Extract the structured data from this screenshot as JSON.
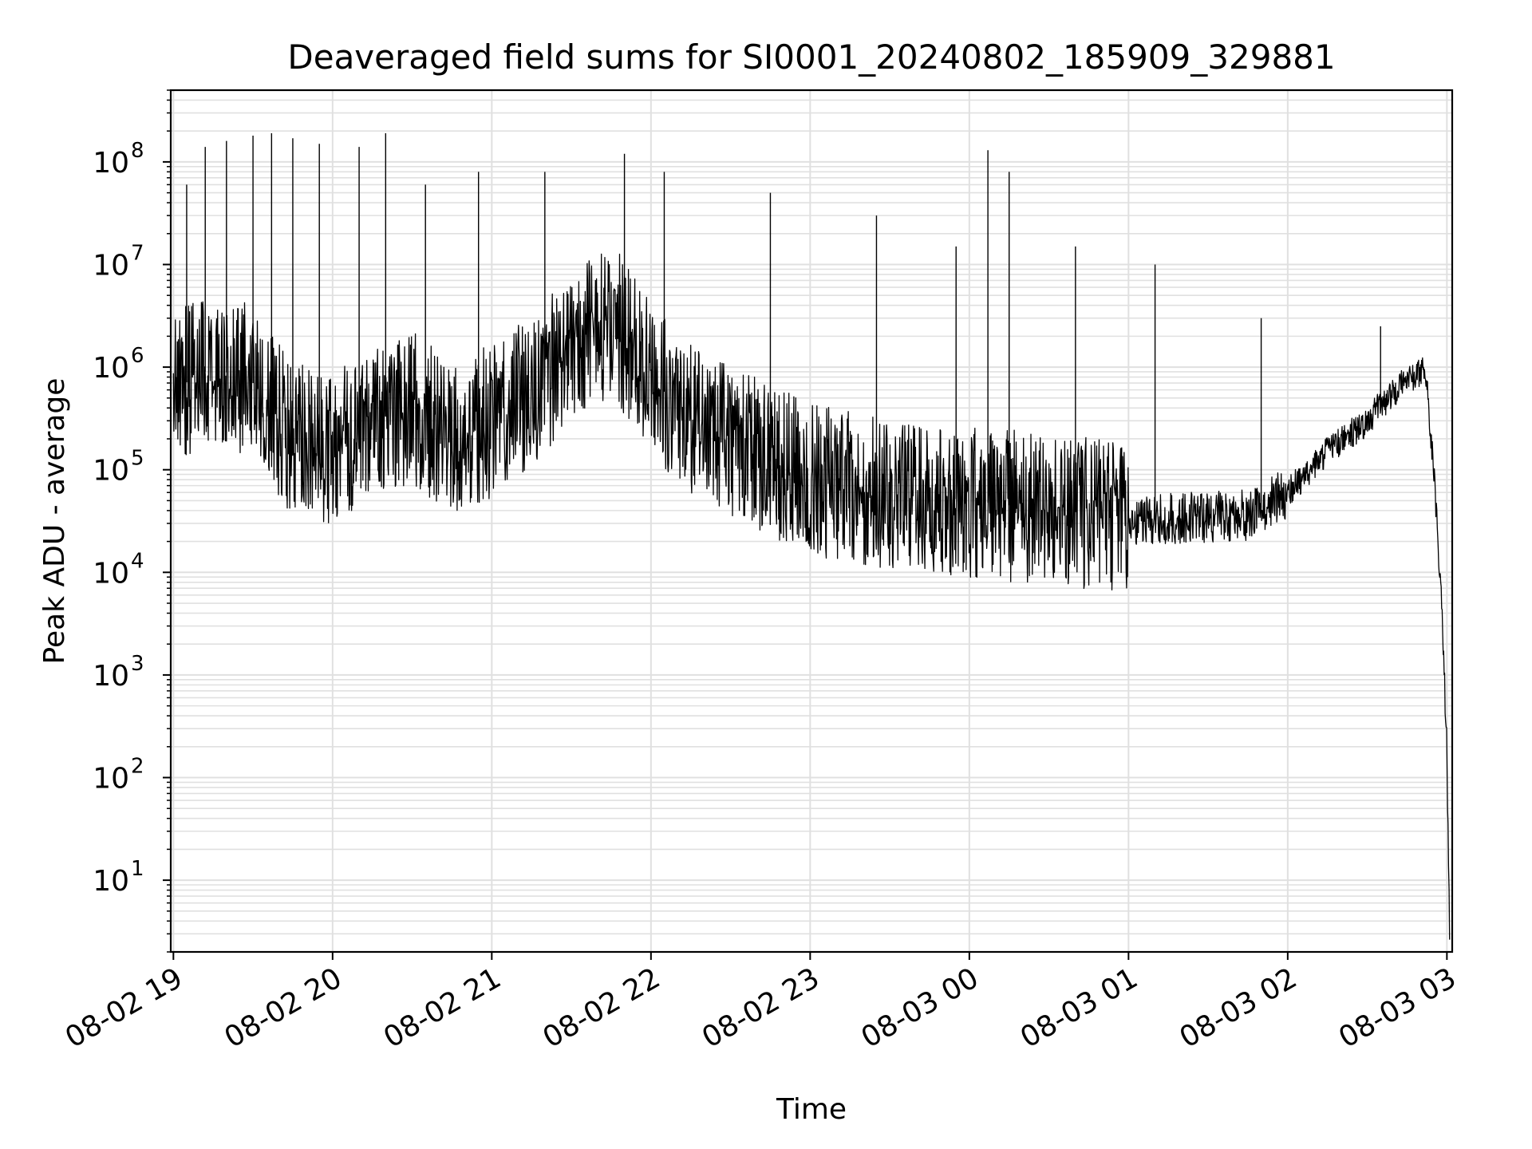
{
  "chart_data": {
    "type": "line",
    "title": "Deaveraged field sums for SI0001_20240802_185909_329881",
    "xlabel": "Time",
    "ylabel": "Peak ADU - average",
    "yscale": "log",
    "ylim": [
      2,
      500000000
    ],
    "xlim": [
      "08-02 18:59",
      "08-03 03:02"
    ],
    "grid": true,
    "line_color": "#000000",
    "grid_color": "#e0e0e0",
    "x_ticks": [
      {
        "label": "08-02 19",
        "value": "08-02 19:00"
      },
      {
        "label": "08-02 20",
        "value": "08-02 20:00"
      },
      {
        "label": "08-02 21",
        "value": "08-02 21:00"
      },
      {
        "label": "08-02 22",
        "value": "08-02 22:00"
      },
      {
        "label": "08-02 23",
        "value": "08-02 23:00"
      },
      {
        "label": "08-03 00",
        "value": "08-03 00:00"
      },
      {
        "label": "08-03 01",
        "value": "08-03 01:00"
      },
      {
        "label": "08-03 02",
        "value": "08-03 02:00"
      },
      {
        "label": "08-03 03",
        "value": "08-03 03:00"
      }
    ],
    "y_ticks": [
      {
        "base": "10",
        "exp": "1",
        "value": 10
      },
      {
        "base": "10",
        "exp": "2",
        "value": 100
      },
      {
        "base": "10",
        "exp": "3",
        "value": 1000
      },
      {
        "base": "10",
        "exp": "4",
        "value": 10000
      },
      {
        "base": "10",
        "exp": "5",
        "value": 100000
      },
      {
        "base": "10",
        "exp": "6",
        "value": 1000000
      },
      {
        "base": "10",
        "exp": "7",
        "value": 10000000
      },
      {
        "base": "10",
        "exp": "8",
        "value": 100000000
      }
    ],
    "series": [
      {
        "name": "",
        "x": [
          "08-02 19:00",
          "08-02 19:15",
          "08-02 19:30",
          "08-02 19:45",
          "08-02 20:00",
          "08-02 20:15",
          "08-02 20:30",
          "08-02 20:45",
          "08-02 21:00",
          "08-02 21:15",
          "08-02 21:30",
          "08-02 21:45",
          "08-02 22:00",
          "08-02 22:15",
          "08-02 22:30",
          "08-02 22:45",
          "08-02 23:00",
          "08-02 23:15",
          "08-02 23:30",
          "08-02 23:45",
          "08-03 00:00",
          "08-03 00:15",
          "08-03 00:30",
          "08-03 00:45",
          "08-03 01:00",
          "08-03 01:15",
          "08-03 01:30",
          "08-03 01:45",
          "08-03 02:00",
          "08-03 02:15",
          "08-03 02:30",
          "08-03 02:45",
          "08-03 02:52",
          "08-03 02:55",
          "08-03 02:58",
          "08-03 03:00",
          "08-03 03:01"
        ],
        "values": [
          600000,
          1000000,
          700000,
          200000,
          150000,
          300000,
          400000,
          200000,
          300000,
          600000,
          1500000,
          3000000,
          800000,
          300000,
          200000,
          120000,
          80000,
          70000,
          60000,
          55000,
          50000,
          45000,
          40000,
          38000,
          32000,
          33000,
          35000,
          36000,
          60000,
          150000,
          300000,
          800000,
          900000,
          100000,
          5000,
          200,
          3
        ]
      }
    ],
    "spikes": {
      "x": [
        "08-02 19:05",
        "08-02 19:12",
        "08-02 19:20",
        "08-02 19:30",
        "08-02 19:37",
        "08-02 19:45",
        "08-02 19:55",
        "08-02 20:10",
        "08-02 20:20",
        "08-02 20:35",
        "08-02 20:55",
        "08-02 21:20",
        "08-02 21:50",
        "08-02 22:05",
        "08-02 22:45",
        "08-02 23:25",
        "08-02 23:55",
        "08-03 00:07",
        "08-03 00:15",
        "08-03 00:40",
        "08-03 01:10",
        "08-03 01:50",
        "08-03 02:35"
      ],
      "values": [
        60000000,
        140000000,
        160000000,
        180000000,
        190000000,
        170000000,
        150000000,
        140000000,
        190000000,
        60000000,
        80000000,
        80000000,
        120000000,
        80000000,
        50000000,
        30000000,
        15000000,
        130000000,
        80000000,
        15000000,
        10000000,
        3000000,
        2500000
      ]
    }
  }
}
